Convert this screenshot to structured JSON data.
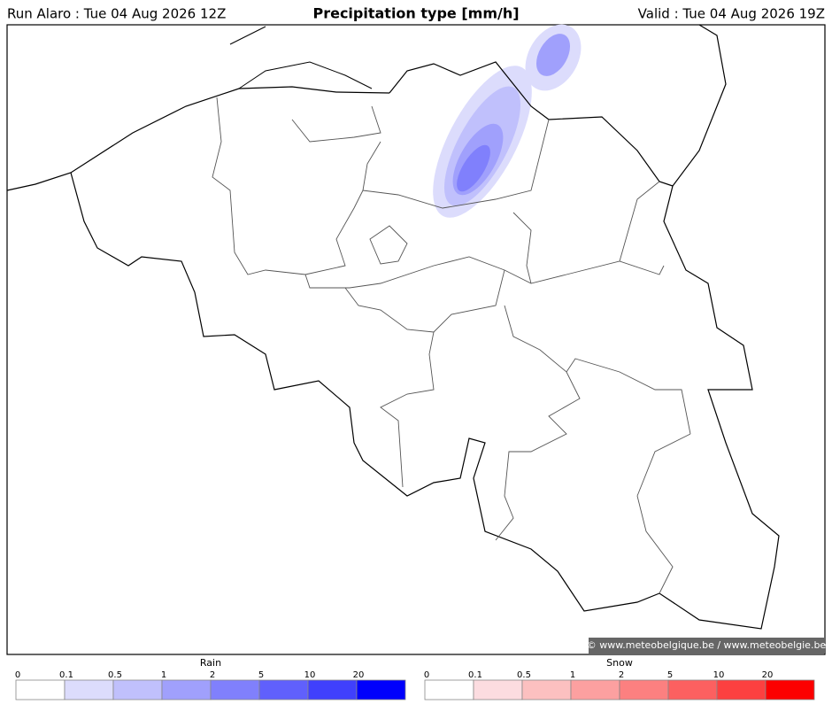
{
  "header": {
    "left": "Run Alaro : Tue 04 Aug 2026 12Z",
    "title": "Precipitation type [mm/h]",
    "right": "Valid : Tue 04 Aug 2026 19Z"
  },
  "credit": "© www.meteobelgique.be / www.meteobelgie.be",
  "legends": [
    {
      "title": "Rain",
      "ticks": [
        0,
        0.1,
        0.5,
        1,
        2,
        5,
        10,
        20
      ],
      "colors": [
        "#ffffff",
        "#dcdcfc",
        "#c0c0fc",
        "#a0a0fc",
        "#8080fc",
        "#6060fc",
        "#4040fc",
        "#0000fc"
      ]
    },
    {
      "title": "Snow",
      "ticks": [
        0,
        0.1,
        0.5,
        1,
        2,
        5,
        10,
        20
      ],
      "colors": [
        "#ffffff",
        "#fcdce0",
        "#fcc0c0",
        "#fca0a0",
        "#fc8080",
        "#fc6060",
        "#fc4040",
        "#fc0000"
      ]
    }
  ]
}
